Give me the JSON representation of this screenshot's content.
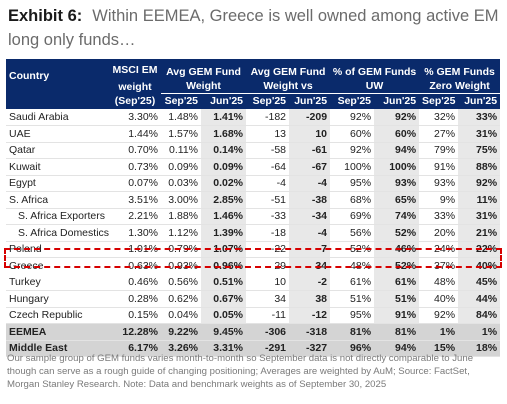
{
  "title": {
    "exhibit": "Exhibit 6:",
    "text": "Within EEMEA, Greece is well owned among active EM long only funds…"
  },
  "table": {
    "header": {
      "country": "Country",
      "msci_line1": "MSCI EM",
      "msci_line2": "weight",
      "avg_fund": "Avg GEM Fund Weight",
      "avg_vs": "Avg GEM Fund Weight vs",
      "pct_uw": "% of GEM Funds UW",
      "pct_zero": "% GEM Funds Zero Weight"
    },
    "subheader": [
      "(Sep'25)",
      "Sep'25",
      "Jun'25",
      "Sep'25",
      "Jun'25",
      "Sep'25",
      "Jun'25",
      "Sep'25",
      "Jun'25"
    ],
    "rows": [
      {
        "country": "Saudi Arabia",
        "indent": false,
        "values": [
          "3.30%",
          "1.48%",
          "1.41%",
          "-182",
          "-209",
          "92%",
          "92%",
          "32%",
          "33%"
        ]
      },
      {
        "country": "UAE",
        "indent": false,
        "values": [
          "1.44%",
          "1.57%",
          "1.68%",
          "13",
          "10",
          "60%",
          "60%",
          "27%",
          "31%"
        ]
      },
      {
        "country": "Qatar",
        "indent": false,
        "values": [
          "0.70%",
          "0.11%",
          "0.14%",
          "-58",
          "-61",
          "92%",
          "94%",
          "79%",
          "75%"
        ]
      },
      {
        "country": "Kuwait",
        "indent": false,
        "values": [
          "0.73%",
          "0.09%",
          "0.09%",
          "-64",
          "-67",
          "100%",
          "100%",
          "91%",
          "88%"
        ]
      },
      {
        "country": "Egypt",
        "indent": false,
        "values": [
          "0.07%",
          "0.03%",
          "0.02%",
          "-4",
          "-4",
          "95%",
          "93%",
          "93%",
          "92%"
        ]
      },
      {
        "country": "S. Africa",
        "indent": false,
        "values": [
          "3.51%",
          "3.00%",
          "2.85%",
          "-51",
          "-38",
          "68%",
          "65%",
          "9%",
          "11%"
        ]
      },
      {
        "country": "S. Africa Exporters",
        "indent": true,
        "values": [
          "2.21%",
          "1.88%",
          "1.46%",
          "-33",
          "-34",
          "69%",
          "74%",
          "33%",
          "31%"
        ]
      },
      {
        "country": "S. Africa Domestics",
        "indent": true,
        "values": [
          "1.30%",
          "1.12%",
          "1.39%",
          "-18",
          "-4",
          "56%",
          "52%",
          "20%",
          "21%"
        ]
      },
      {
        "country": "Poland",
        "indent": false,
        "values": [
          "1.01%",
          "0.79%",
          "1.07%",
          "-22",
          "-7",
          "52%",
          "46%",
          "24%",
          "22%"
        ]
      },
      {
        "country": "Greece",
        "indent": false,
        "highlight": true,
        "values": [
          "0.63%",
          "0.93%",
          "0.96%",
          "29",
          "34",
          "48%",
          "52%",
          "37%",
          "40%"
        ]
      },
      {
        "country": "Turkey",
        "indent": false,
        "values": [
          "0.46%",
          "0.56%",
          "0.51%",
          "10",
          "-2",
          "61%",
          "61%",
          "48%",
          "45%"
        ]
      },
      {
        "country": "Hungary",
        "indent": false,
        "values": [
          "0.28%",
          "0.62%",
          "0.67%",
          "34",
          "38",
          "51%",
          "51%",
          "40%",
          "44%"
        ]
      },
      {
        "country": "Czech Republic",
        "indent": false,
        "values": [
          "0.15%",
          "0.04%",
          "0.05%",
          "-11",
          "-12",
          "95%",
          "91%",
          "92%",
          "84%"
        ]
      }
    ],
    "totals": [
      {
        "country": "EEMEA",
        "values": [
          "12.28%",
          "9.22%",
          "9.45%",
          "-306",
          "-318",
          "81%",
          "81%",
          "1%",
          "1%"
        ]
      },
      {
        "country": "Middle East",
        "values": [
          "6.17%",
          "3.26%",
          "3.31%",
          "-291",
          "-327",
          "96%",
          "94%",
          "15%",
          "18%"
        ]
      }
    ]
  },
  "footnote": "Our sample group of GEM funds varies month-to-month so September data is not directly comparable to June though can serve as a rough guide of changing positioning; Averages are weighted by AuM; Source: FactSet, Morgan Stanley Research. Note: Data and benchmark weights as of September 30, 2025",
  "colors": {
    "header_bg": "#0a2a6b",
    "highlight_border": "#d60000",
    "shaded_col": "#e8e8e8",
    "total_row_bg": "#d4d4d4"
  }
}
